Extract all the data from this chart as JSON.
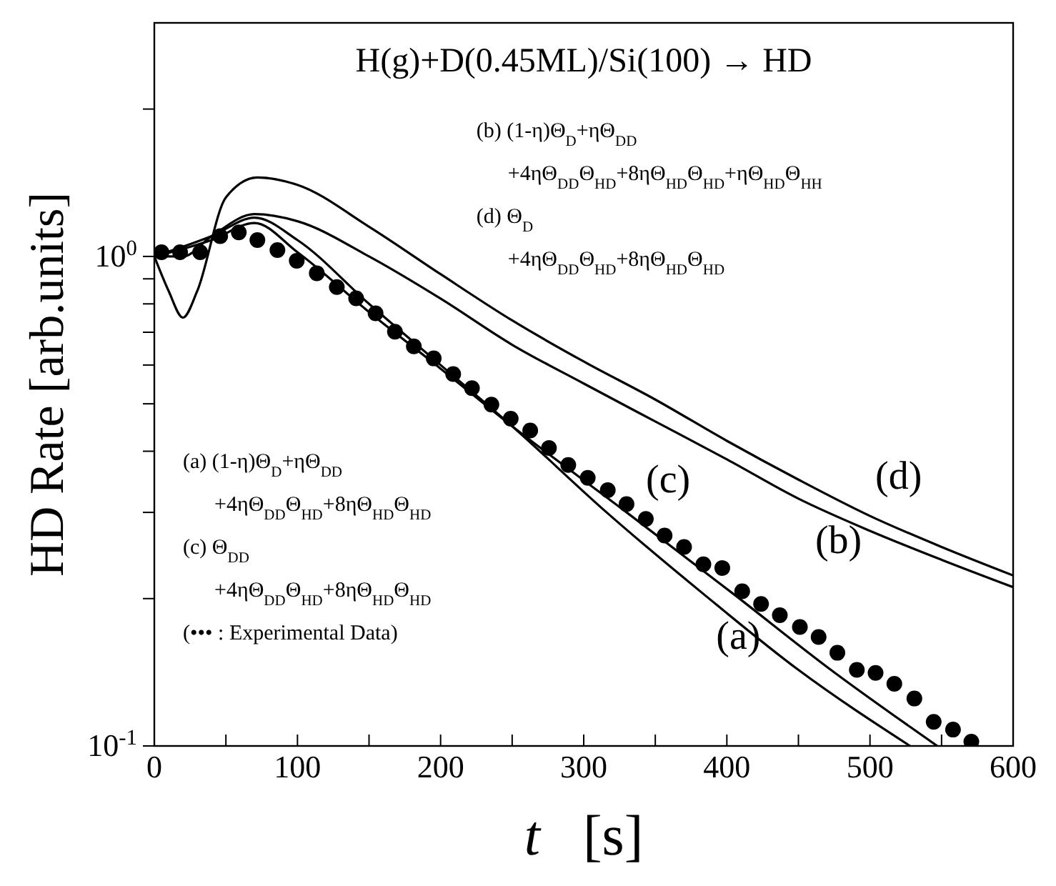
{
  "chart_data": {
    "type": "line",
    "title": "H(g)+D(0.45ML)/Si(100) → HD",
    "xlabel": "t  [s]",
    "ylabel": "HD Rate [arb.units]",
    "log": "y",
    "xlim": [
      0,
      600
    ],
    "ylim": [
      0.1,
      3
    ],
    "xticks": [
      0,
      {
        "value": 50,
        "label": null
      },
      100,
      {
        "value": 150,
        "label": null
      },
      200,
      {
        "value": 250,
        "label": null
      },
      300,
      {
        "value": 350,
        "label": null
      },
      400,
      {
        "value": 450,
        "label": null
      },
      500,
      {
        "value": 550,
        "label": null
      },
      600
    ],
    "yticks": [
      {
        "value": 0.1,
        "label": "10$^{-1}$"
      },
      {
        "value": 0.2,
        "label": null
      },
      {
        "value": 0.3,
        "label": null
      },
      {
        "value": 0.4,
        "label": null
      },
      {
        "value": 0.5,
        "label": null
      },
      {
        "value": 0.6,
        "label": null
      },
      {
        "value": 0.7,
        "label": null
      },
      {
        "value": 0.8,
        "label": null
      },
      {
        "value": 0.9,
        "label": null
      },
      {
        "value": 1,
        "label": "10$^{0}$"
      },
      {
        "value": 2,
        "label": null
      }
    ],
    "series": [
      {
        "color": "#000000",
        "x": [
          0,
          40,
          70,
          100,
          150,
          200,
          250,
          316,
          384,
          450,
          528
        ],
        "values": [
          1.0,
          1.1,
          1.2,
          1.08,
          0.8,
          0.6,
          0.45,
          0.3,
          0.204,
          0.143,
          0.1
        ]
      },
      {
        "color": "#000000",
        "x": [
          0,
          20,
          40,
          70,
          100,
          150,
          200,
          250,
          300,
          350,
          400,
          450,
          500,
          550,
          600
        ],
        "values": [
          1.0,
          1.0,
          1.1,
          1.22,
          1.18,
          1.0,
          0.82,
          0.66,
          0.55,
          0.46,
          0.385,
          0.32,
          0.275,
          0.24,
          0.211
        ]
      },
      {
        "color": "#000000",
        "x": [
          0,
          40,
          70,
          100,
          150,
          200,
          250,
          330,
          405,
          470,
          547
        ],
        "values": [
          1.0,
          1.08,
          1.17,
          1.02,
          0.77,
          0.59,
          0.45,
          0.3,
          0.204,
          0.145,
          0.1
        ]
      },
      {
        "color": "#000000",
        "x": [
          0,
          10,
          20,
          30,
          50,
          72,
          100,
          150,
          200,
          250,
          300,
          350,
          400,
          450,
          500,
          550,
          600
        ],
        "values": [
          1.0,
          0.85,
          0.75,
          0.85,
          1.32,
          1.45,
          1.4,
          1.15,
          0.92,
          0.74,
          0.61,
          0.51,
          0.42,
          0.35,
          0.295,
          0.255,
          0.223
        ]
      },
      {
        "type": "scatter",
        "color": "#000000",
        "marker": "circle",
        "x": [
          5,
          18,
          32,
          46,
          59,
          72,
          86,
          99.5,
          113.5,
          127.5,
          141,
          154.6,
          168.1,
          181.3,
          195.2,
          208.8,
          221.9,
          235.5,
          249,
          262.6,
          275.7,
          289.2,
          302.8,
          316.8,
          329.9,
          343.4,
          356.5,
          370.1,
          383.6,
          396.8,
          410.7,
          423.9,
          437,
          451,
          464.1,
          477.2,
          490.8,
          503.9,
          517,
          531,
          544.5,
          558,
          570.8
        ],
        "values": [
          1.02,
          1.02,
          1.02,
          1.1,
          1.12,
          1.08,
          1.03,
          0.98,
          0.924,
          0.866,
          0.821,
          0.765,
          0.702,
          0.655,
          0.619,
          0.575,
          0.538,
          0.498,
          0.466,
          0.441,
          0.406,
          0.375,
          0.353,
          0.333,
          0.312,
          0.291,
          0.269,
          0.255,
          0.235,
          0.231,
          0.207,
          0.195,
          0.185,
          0.175,
          0.167,
          0.155,
          0.143,
          0.141,
          0.134,
          0.125,
          0.112,
          0.108,
          0.102
        ]
      }
    ],
    "annotations": [
      "(a)",
      "(b)",
      "(c)",
      "(d)",
      "(b) (1-η)Θ$_{D}$+ηΘ$_{DD}$",
      "+4ηΘ$_{DD}$Θ$_{HD}$+8ηΘ$_{HD}$Θ$_{HD}$+ηΘ$_{HD}$Θ$_{HH}$",
      "(d)  Θ$_{D}$",
      "+4ηΘ$_{DD}$Θ$_{HD}$+8ηΘ$_{HD}$Θ$_{HD}$",
      "(a) (1-η)Θ$_{D}$+ηΘ$_{DD}$",
      "+4ηΘ$_{DD}$Θ$_{HD}$+8ηΘ$_{HD}$Θ$_{HD}$",
      "(c) Θ$_{DD}$",
      "+4ηΘ$_{DD}$Θ$_{HD}$+8ηΘ$_{HD}$Θ$_{HD}$",
      "(••• : Experimental Data)"
    ]
  }
}
